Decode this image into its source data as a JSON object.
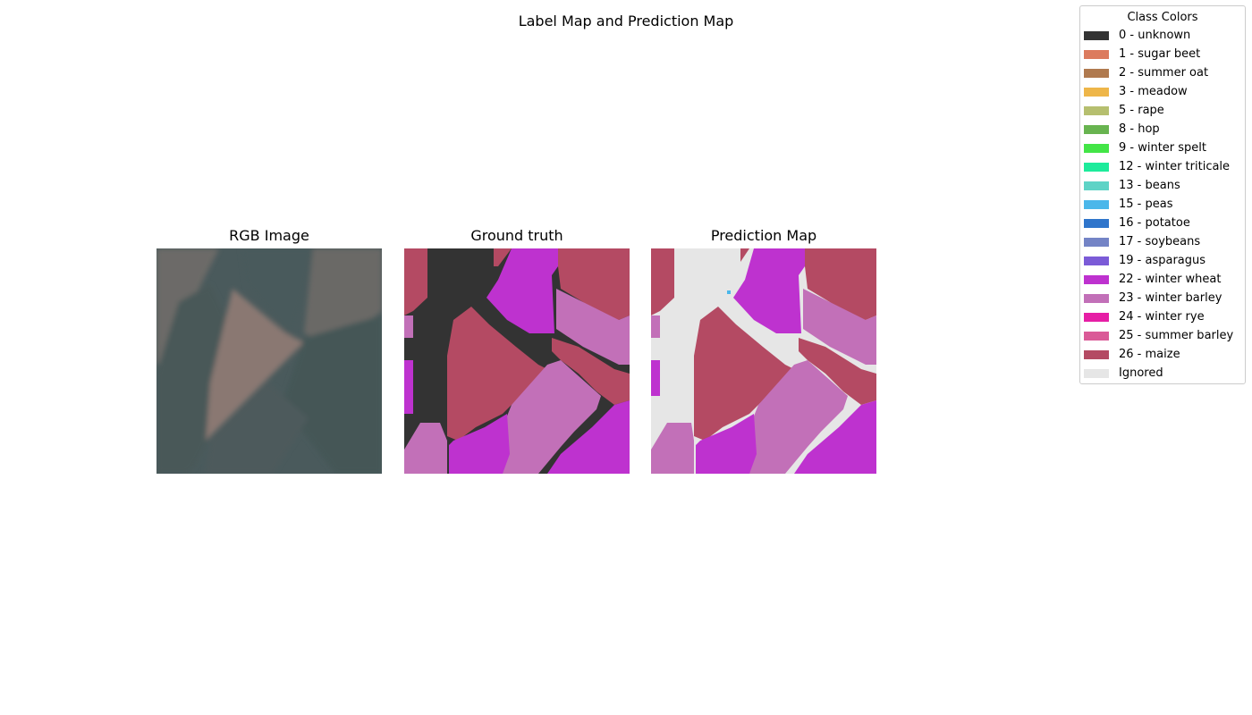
{
  "figure": {
    "title": "Label Map and Prediction Map"
  },
  "panels": [
    {
      "id": "rgb",
      "title": "RGB Image"
    },
    {
      "id": "gt",
      "title": "Ground truth"
    },
    {
      "id": "pred",
      "title": "Prediction Map"
    }
  ],
  "legend": {
    "title": "Class Colors",
    "items": [
      {
        "label": "0 - unknown",
        "color": "#333333"
      },
      {
        "label": "1 - sugar beet",
        "color": "#dc7b5e"
      },
      {
        "label": "2 - summer oat",
        "color": "#b07a4f"
      },
      {
        "label": "3 - meadow",
        "color": "#eeb649"
      },
      {
        "label": "5 - rape",
        "color": "#b6bf6f"
      },
      {
        "label": "8 - hop",
        "color": "#68b450"
      },
      {
        "label": "9 - winter spelt",
        "color": "#43e547"
      },
      {
        "label": "12 - winter triticale",
        "color": "#1deb9b"
      },
      {
        "label": "13 - beans",
        "color": "#5ed3c6"
      },
      {
        "label": "15 - peas",
        "color": "#4bb7ea"
      },
      {
        "label": "16 - potatoe",
        "color": "#2f75cb"
      },
      {
        "label": "17 - soybeans",
        "color": "#7484c6"
      },
      {
        "label": "19 - asparagus",
        "color": "#7b5bd7"
      },
      {
        "label": "22 - winter wheat",
        "color": "#be32cf"
      },
      {
        "label": "23 - winter barley",
        "color": "#c270b8"
      },
      {
        "label": "24 - winter rye",
        "color": "#e61ea5"
      },
      {
        "label": "25 - summer barley",
        "color": "#da5a97"
      },
      {
        "label": "26 - maize",
        "color": "#b44a63"
      },
      {
        "label": "Ignored",
        "color": "#e6e6e6"
      }
    ]
  }
}
